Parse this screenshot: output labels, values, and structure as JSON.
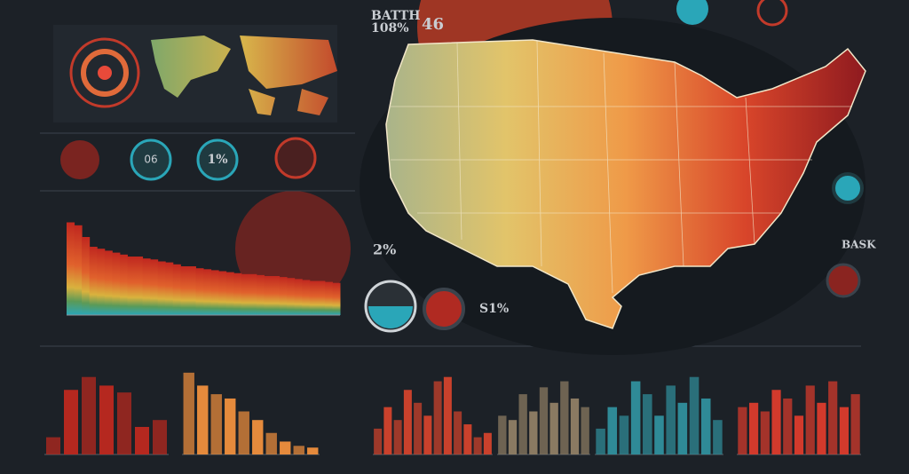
{
  "header": {
    "map_title": "BATTH",
    "map_value": "108%",
    "map_count": "46"
  },
  "gauges": [
    {
      "label": "06"
    },
    {
      "label": "1%"
    }
  ],
  "callouts": {
    "pct_a": "2%",
    "pct_b": "S1%",
    "side": "BASK"
  },
  "trend": {
    "ylim": [
      0,
      100
    ],
    "values": [
      95,
      92,
      80,
      70,
      68,
      66,
      64,
      62,
      60,
      60,
      58,
      57,
      55,
      54,
      52,
      50,
      50,
      48,
      47,
      46,
      45,
      44,
      43,
      42,
      42,
      41,
      40,
      40,
      39,
      38,
      37,
      36,
      35,
      35,
      34,
      33
    ]
  },
  "bar_panels": [
    {
      "color": "#b5281f",
      "ylim": [
        0,
        100
      ],
      "values": [
        20,
        75,
        90,
        80,
        72,
        32,
        40
      ]
    },
    {
      "color": "#e58a3c",
      "ylim": [
        0,
        100
      ],
      "values": [
        95,
        80,
        70,
        65,
        50,
        40,
        25,
        15,
        10,
        8
      ]
    },
    {
      "color": "#c9412c",
      "ylim": [
        0,
        100
      ],
      "values": [
        30,
        55,
        40,
        75,
        60,
        45,
        85,
        90,
        50,
        35,
        20,
        25
      ]
    },
    {
      "color": "#8a7a62",
      "ylim": [
        0,
        100
      ],
      "values": [
        45,
        40,
        70,
        50,
        78,
        60,
        85,
        65,
        55
      ]
    },
    {
      "color": "#2f8a97",
      "ylim": [
        0,
        100
      ],
      "values": [
        30,
        55,
        45,
        85,
        70,
        45,
        80,
        60,
        90,
        65,
        40
      ]
    },
    {
      "color": "#d23a2c",
      "ylim": [
        0,
        100
      ],
      "values": [
        55,
        60,
        50,
        75,
        65,
        45,
        80,
        60,
        85,
        55,
        70
      ]
    }
  ]
}
